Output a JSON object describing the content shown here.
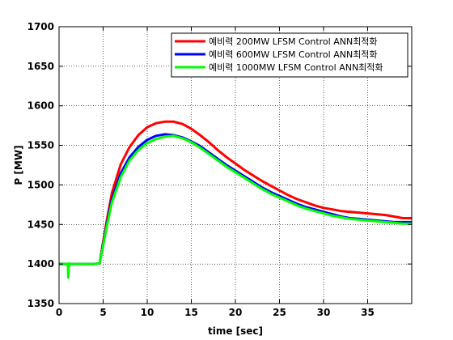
{
  "chart_data": {
    "type": "line",
    "xlabel": "time [sec]",
    "ylabel": "P [MW]",
    "xlim": [
      0,
      40
    ],
    "ylim": [
      1350,
      1700
    ],
    "xticks": [
      0,
      5,
      10,
      15,
      20,
      25,
      30,
      35
    ],
    "yticks": [
      1350,
      1400,
      1450,
      1500,
      1550,
      1600,
      1650,
      1700
    ],
    "grid": true,
    "legend_position": "top-right",
    "series": [
      {
        "name": "예비력 200MW LFSM Control ANN최적화",
        "color": "#ff0000",
        "x": [
          0,
          1,
          2,
          3,
          4,
          4.6,
          5,
          5.5,
          6,
          7,
          8,
          9,
          10,
          11,
          12,
          13,
          14,
          15,
          16,
          17,
          18,
          19,
          20,
          21,
          22,
          23,
          24,
          25,
          26,
          27,
          28,
          29,
          30,
          31,
          32,
          33,
          34,
          35,
          36,
          37,
          38,
          39,
          40
        ],
        "y": [
          1400,
          1400,
          1400,
          1400,
          1400,
          1401,
          1428,
          1460,
          1490,
          1526,
          1548,
          1563,
          1573,
          1578,
          1580,
          1580,
          1577,
          1571,
          1563,
          1554,
          1544,
          1535,
          1527,
          1519,
          1512,
          1505,
          1499,
          1493,
          1487,
          1482,
          1478,
          1474,
          1471,
          1469,
          1467,
          1466,
          1465,
          1464,
          1463,
          1462,
          1460,
          1458,
          1458
        ]
      },
      {
        "name": "예비력 600MW LFSM Control ANN최적화",
        "color": "#0000ff",
        "x": [
          0,
          1,
          2,
          3,
          4,
          4.6,
          5,
          5.5,
          6,
          7,
          8,
          9,
          10,
          11,
          12,
          13,
          14,
          15,
          16,
          17,
          18,
          19,
          20,
          21,
          22,
          23,
          24,
          25,
          26,
          27,
          28,
          29,
          30,
          31,
          32,
          33,
          34,
          35,
          36,
          37,
          38,
          39,
          40
        ],
        "y": [
          1400,
          1400,
          1400,
          1400,
          1400,
          1401,
          1425,
          1455,
          1482,
          1515,
          1535,
          1548,
          1557,
          1562,
          1564,
          1563,
          1560,
          1555,
          1549,
          1541,
          1533,
          1525,
          1518,
          1511,
          1504,
          1497,
          1491,
          1486,
          1481,
          1476,
          1472,
          1469,
          1466,
          1463,
          1460,
          1458,
          1457,
          1456,
          1455,
          1454,
          1453,
          1453,
          1453
        ]
      },
      {
        "name": "예비력 1000MW LFSM Control ANN최적화",
        "color": "#00ff00",
        "x": [
          0,
          1,
          1.05,
          1.12,
          1.2,
          1.3,
          2,
          3,
          4,
          4.6,
          5,
          5.5,
          6,
          7,
          8,
          9,
          10,
          11,
          12,
          13,
          14,
          15,
          16,
          17,
          18,
          19,
          20,
          21,
          22,
          23,
          24,
          25,
          26,
          27,
          28,
          29,
          30,
          31,
          32,
          33,
          34,
          35,
          36,
          37,
          38,
          39,
          40
        ],
        "y": [
          1400,
          1400,
          1383,
          1401,
          1398,
          1400,
          1400,
          1400,
          1400,
          1401,
          1423,
          1452,
          1478,
          1510,
          1531,
          1544,
          1553,
          1558,
          1561,
          1562,
          1559,
          1554,
          1547,
          1539,
          1531,
          1523,
          1516,
          1509,
          1502,
          1495,
          1489,
          1484,
          1479,
          1474,
          1470,
          1467,
          1464,
          1461,
          1459,
          1457,
          1456,
          1455,
          1454,
          1453,
          1452,
          1451,
          1451
        ]
      }
    ]
  }
}
